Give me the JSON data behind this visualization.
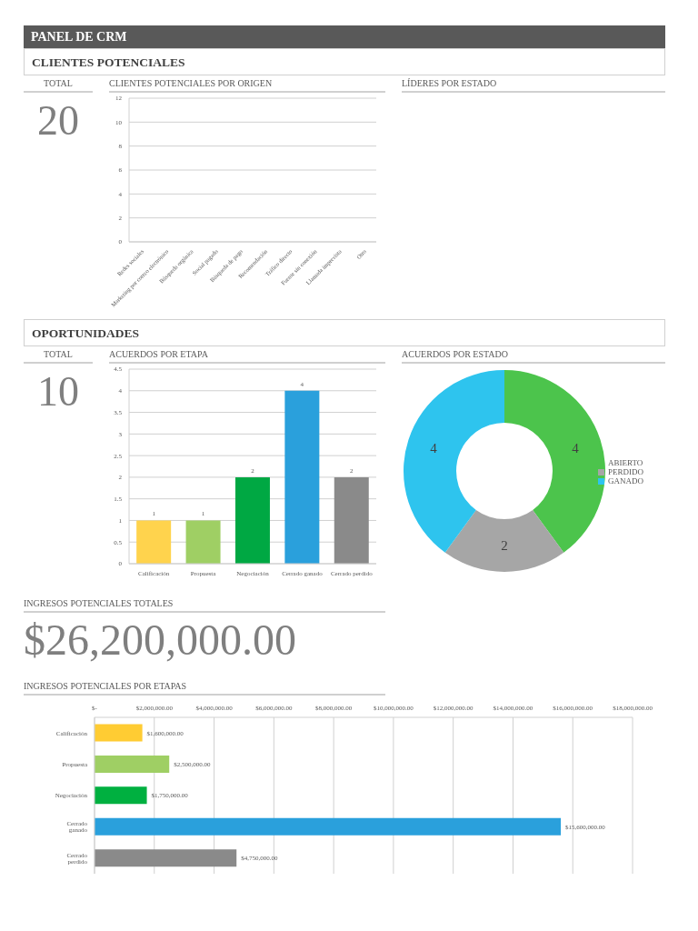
{
  "chart_data": [
    {
      "type": "other",
      "title": "PANEL DE CRM"
    },
    {
      "type": "other",
      "title": "CLIENTES POTENCIALES"
    },
    {
      "type": "other",
      "title": "TOTAL",
      "annotations": [
        "20"
      ]
    },
    {
      "type": "bar",
      "title": "CLIENTES POTENCIALES POR ORIGEN",
      "categories": [
        "Redes sociales",
        "Marketing por correo electrónico",
        "Búsqueda orgánica",
        "Social pagado",
        "Búsqueda de pago",
        "Recomendación",
        "Tráfico directo",
        "Fuente sin conexión",
        "Llamada imprevista",
        "Otro"
      ],
      "values": [
        0,
        0,
        0,
        0,
        0,
        0,
        0,
        0,
        0,
        0
      ],
      "ylim": [
        0,
        12
      ],
      "yticks": [
        0,
        2,
        4,
        6,
        8,
        10,
        12
      ],
      "grid": "y"
    },
    {
      "type": "other",
      "title": "LÍDERES POR ESTADO"
    },
    {
      "type": "other",
      "title": "OPORTUNIDADES"
    },
    {
      "type": "other",
      "title": "TOTAL",
      "annotations": [
        "10"
      ]
    },
    {
      "type": "bar",
      "title": "ACUERDOS POR ETAPA",
      "categories": [
        "Calificación",
        "Propuesta",
        "Negociación",
        "Cerrado ganado",
        "Cerrado perdido"
      ],
      "values": [
        1,
        1,
        2,
        4,
        2
      ],
      "colors": [
        "#ffd34d",
        "#9fcf64",
        "#00a843",
        "#2aa0dc",
        "#8a8a8a"
      ],
      "ylim": [
        0,
        4.5
      ],
      "yticks": [
        0,
        0.5,
        1,
        1.5,
        2,
        2.5,
        3,
        3.5,
        4,
        4.5
      ],
      "grid": "y",
      "data_labels": true
    },
    {
      "type": "donut",
      "title": "ACUERDOS POR ESTADO",
      "categories": [
        "ABIERTO",
        "PERDIDO",
        "GANADO"
      ],
      "values": [
        4,
        2,
        4
      ],
      "colors": [
        "#4cc44c",
        "#a6a6a6",
        "#2ec4ee"
      ],
      "data_labels": true,
      "legend": "right"
    },
    {
      "type": "other",
      "title": "INGRESOS POTENCIALES TOTALES",
      "annotations": [
        "$26,200,000.00"
      ]
    },
    {
      "type": "bar",
      "orientation": "horizontal",
      "title": "INGRESOS POTENCIALES POR ETAPAS",
      "categories": [
        "Calificación",
        "Propuesta",
        "Negociación",
        "Cerrado ganado",
        "Cerrado perdido"
      ],
      "values": [
        1600000,
        2500000,
        1750000,
        15600000,
        4750000
      ],
      "colors": [
        "#ffcc33",
        "#9fcf64",
        "#00b040",
        "#2aa0dc",
        "#8a8a8a"
      ],
      "value_labels": [
        "$1,600,000.00",
        "$2,500,000.00",
        "$1,750,000.00",
        "$15,600,000.00",
        "$4,750,000.00"
      ],
      "xlim": [
        0,
        18000000
      ],
      "xticks": [
        {
          "value": 0,
          "label": "$-"
        },
        {
          "value": 2000000,
          "label": "$2,000,000.00"
        },
        {
          "value": 4000000,
          "label": "$4,000,000.00"
        },
        {
          "value": 6000000,
          "label": "$6,000,000.00"
        },
        {
          "value": 8000000,
          "label": "$8,000,000.00"
        },
        {
          "value": 10000000,
          "label": "$10,000,000.00"
        },
        {
          "value": 12000000,
          "label": "$12,000,000.00"
        },
        {
          "value": 14000000,
          "label": "$14,000,000.00"
        },
        {
          "value": 16000000,
          "label": "$16,000,000.00"
        },
        {
          "value": 18000000,
          "label": "$18,000,000.00"
        }
      ],
      "grid": "x"
    }
  ]
}
